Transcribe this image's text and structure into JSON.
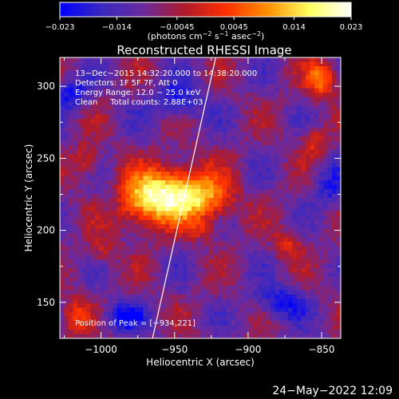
{
  "chart_data": {
    "type": "heatmap",
    "title": "Reconstructed RHESSI Image",
    "xlabel": "Heliocentric X (arcsec)",
    "ylabel": "Heliocentric Y (arcsec)",
    "xlim": [
      -1028,
      -837
    ],
    "ylim": [
      125,
      320
    ],
    "xticks": [
      -1000,
      -950,
      -900,
      -850
    ],
    "xtick_labels": [
      "−1000",
      "−950",
      "−900",
      "−850"
    ],
    "yticks": [
      150,
      200,
      250,
      300
    ],
    "ytick_labels": [
      "150",
      "200",
      "250",
      "300"
    ],
    "colorbar": {
      "min": -0.023,
      "max": 0.023,
      "ticks": [
        -0.023,
        -0.014,
        -0.0045,
        0.0045,
        0.014,
        0.023
      ],
      "tick_labels": [
        "−0.023",
        "−0.014",
        "−0.0045",
        "0.0045",
        "0.014",
        "0.023"
      ],
      "unit_base": "(photons cm",
      "unit_s": " s",
      "unit_asec": " asec",
      "unit_exp": "−2",
      "unit_exp_s": "−1",
      "unit_close": ")",
      "colors": [
        "#0000ff",
        "#3a28c0",
        "#6a2aa0",
        "#b01a2a",
        "#ff3000",
        "#ff9000",
        "#ffff60",
        "#ffffff"
      ]
    },
    "annotations": [
      "13−Dec−2015 14:32:20.000 to 14:38:20.000",
      "Detectors: 1F 5F 7F, Att 0",
      "Energy Range: 12.0 − 25.0 keV",
      "Clean     Total counts: 2.88E+03"
    ],
    "peak_label": "Position of Peak = [−934,221]",
    "peak": [
      -934,
      221
    ],
    "limb_line": [
      [
        -965,
        125
      ],
      [
        -922,
        320
      ]
    ],
    "sources": [
      {
        "x": -950,
        "y": 226,
        "amp": 0.026,
        "sx": 19,
        "sy": 13
      },
      {
        "x": -972,
        "y": 218,
        "amp": 0.014,
        "sx": 14,
        "sy": 12
      },
      {
        "x": -925,
        "y": 220,
        "amp": 0.01,
        "sx": 12,
        "sy": 10
      },
      {
        "x": -850,
        "y": 305,
        "amp": 0.017,
        "sx": 7,
        "sy": 9
      },
      {
        "x": -855,
        "y": 262,
        "amp": 0.01,
        "sx": 6,
        "sy": 7
      },
      {
        "x": -873,
        "y": 190,
        "amp": 0.009,
        "sx": 7,
        "sy": 7
      },
      {
        "x": -1010,
        "y": 248,
        "amp": 0.01,
        "sx": 7,
        "sy": 8
      },
      {
        "x": -1000,
        "y": 185,
        "amp": 0.008,
        "sx": 6,
        "sy": 7
      },
      {
        "x": -1018,
        "y": 140,
        "amp": 0.012,
        "sx": 7,
        "sy": 9
      },
      {
        "x": -930,
        "y": 200,
        "amp": 0.007,
        "sx": 7,
        "sy": 5
      },
      {
        "x": -985,
        "y": 140,
        "amp": -0.013,
        "sx": 10,
        "sy": 7
      },
      {
        "x": -948,
        "y": 290,
        "amp": -0.012,
        "sx": 12,
        "sy": 9
      },
      {
        "x": -878,
        "y": 150,
        "amp": -0.012,
        "sx": 12,
        "sy": 8
      },
      {
        "x": -845,
        "y": 230,
        "amp": -0.01,
        "sx": 8,
        "sy": 10
      },
      {
        "x": -1020,
        "y": 295,
        "amp": -0.012,
        "sx": 8,
        "sy": 8
      },
      {
        "x": -995,
        "y": 220,
        "amp": -0.006,
        "sx": 5,
        "sy": 8
      }
    ],
    "background": -0.009
  },
  "footer": {
    "timestamp": "24−May−2022 12:09"
  }
}
